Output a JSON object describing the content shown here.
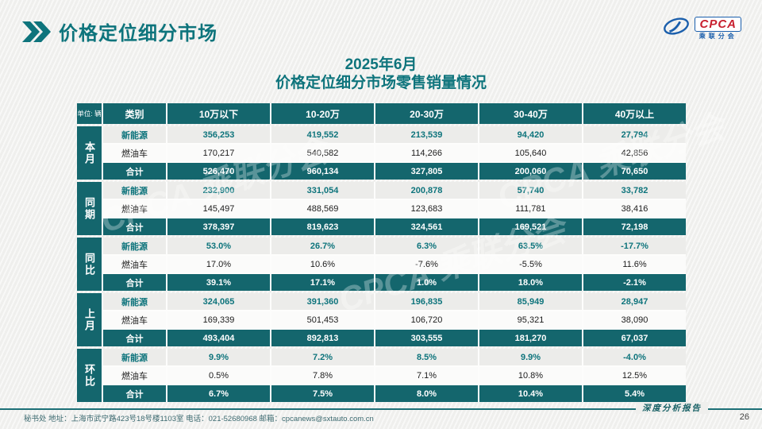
{
  "page": {
    "title": "价格定位细分市场",
    "subtitle_line1": "2025年6月",
    "subtitle_line2": "价格定位细分市场零售销量情况",
    "page_number": "26",
    "watermark_text": "CPCA 乘联分会"
  },
  "logo": {
    "name": "CPCA",
    "subtext": "乘联分会"
  },
  "footer": {
    "contact": "秘书处  地址：上海市武宁路423号18号楼1103室  电话：021-52680968   邮箱：cpcanews@sxtauto.com.cn",
    "report_label": "深度分析报告"
  },
  "colors": {
    "teal": "#14666D",
    "title_teal": "#0E747C",
    "logo_blue": "#1B5FAC",
    "logo_red": "#C8202F"
  },
  "chart_data": {
    "type": "table",
    "title": "2025年6月价格定位细分市场零售销量情况",
    "unit_label": "单位: 辆",
    "columns": [
      "类别",
      "10万以下",
      "10-20万",
      "20-30万",
      "30-40万",
      "40万以上"
    ],
    "groups": [
      {
        "label": "本月",
        "rows": [
          {
            "label": "新能源",
            "style": "nev",
            "values": [
              "356,253",
              "419,552",
              "213,539",
              "94,420",
              "27,794"
            ]
          },
          {
            "label": "燃油车",
            "style": "fuel",
            "values": [
              "170,217",
              "540,582",
              "114,266",
              "105,640",
              "42,856"
            ]
          },
          {
            "label": "合计",
            "style": "total",
            "values": [
              "526,470",
              "960,134",
              "327,805",
              "200,060",
              "70,650"
            ]
          }
        ]
      },
      {
        "label": "同期",
        "rows": [
          {
            "label": "新能源",
            "style": "nev",
            "values": [
              "232,900",
              "331,054",
              "200,878",
              "57,740",
              "33,782"
            ]
          },
          {
            "label": "燃油车",
            "style": "fuel",
            "values": [
              "145,497",
              "488,569",
              "123,683",
              "111,781",
              "38,416"
            ]
          },
          {
            "label": "合计",
            "style": "total",
            "values": [
              "378,397",
              "819,623",
              "324,561",
              "169,521",
              "72,198"
            ]
          }
        ]
      },
      {
        "label": "同比",
        "rows": [
          {
            "label": "新能源",
            "style": "nev",
            "values": [
              "53.0%",
              "26.7%",
              "6.3%",
              "63.5%",
              "-17.7%"
            ]
          },
          {
            "label": "燃油车",
            "style": "fuel",
            "values": [
              "17.0%",
              "10.6%",
              "-7.6%",
              "-5.5%",
              "11.6%"
            ]
          },
          {
            "label": "合计",
            "style": "total",
            "values": [
              "39.1%",
              "17.1%",
              "1.0%",
              "18.0%",
              "-2.1%"
            ]
          }
        ]
      },
      {
        "label": "上月",
        "rows": [
          {
            "label": "新能源",
            "style": "nev",
            "values": [
              "324,065",
              "391,360",
              "196,835",
              "85,949",
              "28,947"
            ]
          },
          {
            "label": "燃油车",
            "style": "fuel",
            "values": [
              "169,339",
              "501,453",
              "106,720",
              "95,321",
              "38,090"
            ]
          },
          {
            "label": "合计",
            "style": "total",
            "values": [
              "493,404",
              "892,813",
              "303,555",
              "181,270",
              "67,037"
            ]
          }
        ]
      },
      {
        "label": "环比",
        "rows": [
          {
            "label": "新能源",
            "style": "nev",
            "values": [
              "9.9%",
              "7.2%",
              "8.5%",
              "9.9%",
              "-4.0%"
            ]
          },
          {
            "label": "燃油车",
            "style": "fuel",
            "values": [
              "0.5%",
              "7.8%",
              "7.1%",
              "10.8%",
              "12.5%"
            ]
          },
          {
            "label": "合计",
            "style": "total",
            "values": [
              "6.7%",
              "7.5%",
              "8.0%",
              "10.4%",
              "5.4%"
            ]
          }
        ]
      }
    ]
  }
}
